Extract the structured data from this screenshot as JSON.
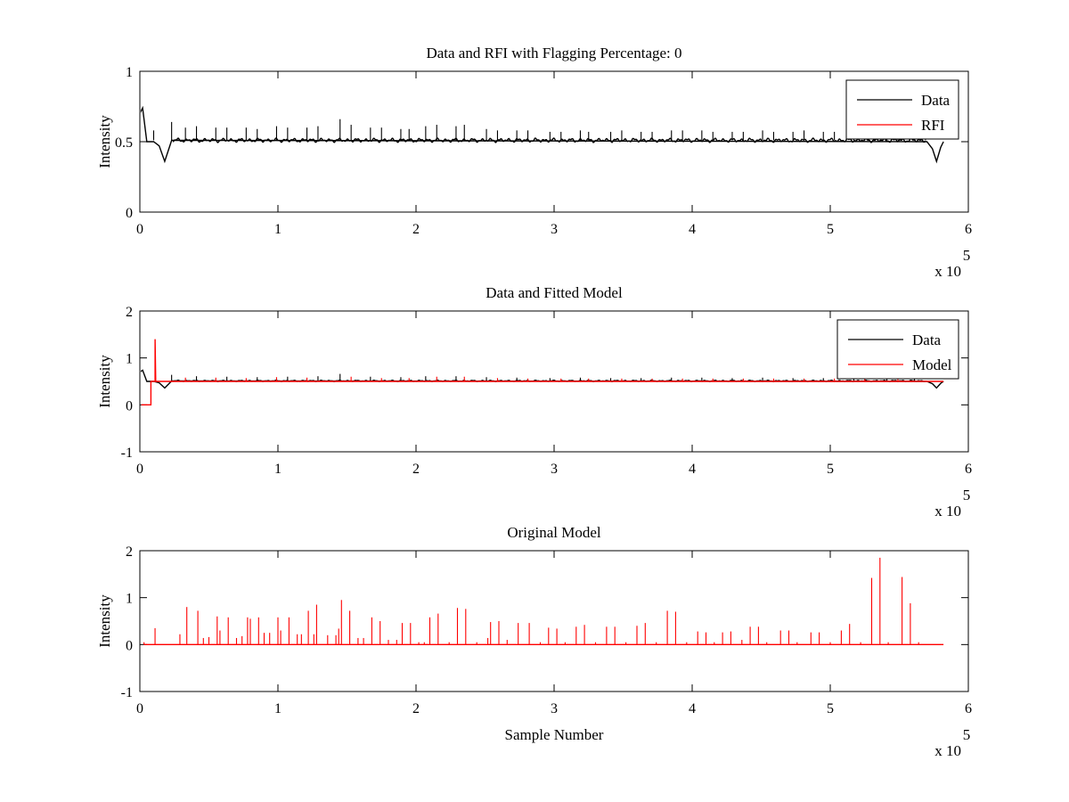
{
  "chart_data": [
    {
      "type": "line",
      "title": "Data and RFI with Flagging Percentage: 0",
      "xlabel": "",
      "ylabel": "Intensity",
      "xlim": [
        0,
        6
      ],
      "ylim": [
        0,
        1
      ],
      "xticks": [
        "0",
        "1",
        "2",
        "3",
        "4",
        "5",
        "6"
      ],
      "yticks": [
        "0",
        "0.5",
        "1"
      ],
      "x_multiplier": "x 10",
      "x_multiplier_exponent": "5",
      "legend": {
        "placement": "top-right",
        "entries": [
          {
            "name": "Data",
            "color": "#000000"
          },
          {
            "name": "RFI",
            "color": "#ff0000"
          }
        ]
      },
      "series": [
        {
          "name": "Data",
          "color": "#000000",
          "baseline": 0.51,
          "points": [
            [
              0.0,
              0.7
            ],
            [
              0.02,
              0.74
            ],
            [
              0.05,
              0.5
            ],
            [
              0.1,
              0.5
            ],
            [
              0.14,
              0.47
            ],
            [
              0.18,
              0.36
            ],
            [
              0.21,
              0.45
            ],
            [
              0.23,
              0.51
            ],
            [
              5.7,
              0.5
            ],
            [
              5.74,
              0.45
            ],
            [
              5.77,
              0.36
            ],
            [
              5.8,
              0.46
            ],
            [
              5.82,
              0.5
            ]
          ],
          "spikes": [
            [
              0.1,
              0.58
            ],
            [
              0.23,
              0.64
            ],
            [
              0.33,
              0.6
            ],
            [
              0.41,
              0.61
            ],
            [
              0.55,
              0.6
            ],
            [
              0.63,
              0.6
            ],
            [
              0.77,
              0.6
            ],
            [
              0.85,
              0.59
            ],
            [
              0.99,
              0.61
            ],
            [
              1.07,
              0.6
            ],
            [
              1.21,
              0.6
            ],
            [
              1.29,
              0.61
            ],
            [
              1.45,
              0.66
            ],
            [
              1.53,
              0.62
            ],
            [
              1.67,
              0.6
            ],
            [
              1.75,
              0.6
            ],
            [
              1.89,
              0.59
            ],
            [
              1.95,
              0.59
            ],
            [
              2.07,
              0.61
            ],
            [
              2.15,
              0.62
            ],
            [
              2.29,
              0.61
            ],
            [
              2.35,
              0.62
            ],
            [
              2.51,
              0.59
            ],
            [
              2.59,
              0.58
            ],
            [
              2.73,
              0.58
            ],
            [
              2.81,
              0.58
            ],
            [
              2.97,
              0.57
            ],
            [
              3.05,
              0.57
            ],
            [
              3.19,
              0.58
            ],
            [
              3.25,
              0.57
            ],
            [
              3.41,
              0.57
            ],
            [
              3.49,
              0.58
            ],
            [
              3.63,
              0.57
            ],
            [
              3.71,
              0.57
            ],
            [
              3.85,
              0.58
            ],
            [
              3.93,
              0.58
            ],
            [
              4.07,
              0.58
            ],
            [
              4.15,
              0.57
            ],
            [
              4.29,
              0.57
            ],
            [
              4.37,
              0.57
            ],
            [
              4.51,
              0.58
            ],
            [
              4.59,
              0.57
            ],
            [
              4.73,
              0.57
            ],
            [
              4.81,
              0.58
            ],
            [
              4.95,
              0.57
            ],
            [
              5.03,
              0.57
            ],
            [
              5.17,
              0.57
            ],
            [
              5.25,
              0.57
            ],
            [
              5.41,
              0.57
            ],
            [
              5.49,
              0.58
            ],
            [
              5.61,
              0.57
            ],
            [
              5.69,
              0.57
            ]
          ]
        },
        {
          "name": "RFI",
          "color": "#ff0000",
          "points": []
        }
      ]
    },
    {
      "type": "line",
      "title": "Data and Fitted Model",
      "xlabel": "",
      "ylabel": "Intensity",
      "xlim": [
        0,
        6
      ],
      "ylim": [
        -1,
        2
      ],
      "xticks": [
        "0",
        "1",
        "2",
        "3",
        "4",
        "5",
        "6"
      ],
      "yticks": [
        "-1",
        "0",
        "1",
        "2"
      ],
      "x_multiplier": "x 10",
      "x_multiplier_exponent": "5",
      "legend": {
        "placement": "top-right",
        "entries": [
          {
            "name": "Data",
            "color": "#000000"
          },
          {
            "name": "Model",
            "color": "#ff0000"
          }
        ]
      },
      "series": [
        {
          "name": "Data",
          "color": "#000000",
          "baseline": 0.51,
          "points": [
            [
              0.0,
              0.7
            ],
            [
              0.02,
              0.74
            ],
            [
              0.05,
              0.5
            ],
            [
              0.1,
              0.5
            ],
            [
              0.14,
              0.47
            ],
            [
              0.18,
              0.36
            ],
            [
              0.21,
              0.45
            ],
            [
              0.23,
              0.51
            ],
            [
              5.7,
              0.5
            ],
            [
              5.74,
              0.45
            ],
            [
              5.77,
              0.36
            ],
            [
              5.8,
              0.46
            ],
            [
              5.82,
              0.5
            ]
          ],
          "spikes": [
            [
              0.23,
              0.64
            ],
            [
              0.41,
              0.61
            ],
            [
              0.63,
              0.6
            ],
            [
              0.85,
              0.59
            ],
            [
              1.07,
              0.6
            ],
            [
              1.29,
              0.61
            ],
            [
              1.45,
              0.66
            ],
            [
              1.67,
              0.6
            ],
            [
              1.89,
              0.59
            ],
            [
              2.07,
              0.61
            ],
            [
              2.29,
              0.61
            ],
            [
              2.51,
              0.59
            ],
            [
              2.73,
              0.58
            ],
            [
              2.97,
              0.57
            ],
            [
              3.19,
              0.58
            ],
            [
              3.41,
              0.57
            ],
            [
              3.63,
              0.57
            ],
            [
              3.85,
              0.58
            ],
            [
              4.07,
              0.58
            ],
            [
              4.29,
              0.57
            ],
            [
              4.51,
              0.58
            ],
            [
              4.73,
              0.57
            ],
            [
              4.95,
              0.57
            ],
            [
              5.17,
              0.57
            ],
            [
              5.41,
              0.57
            ],
            [
              5.61,
              0.57
            ]
          ]
        },
        {
          "name": "Model",
          "color": "#ff0000",
          "baseline": 0.51,
          "points": [
            [
              0.01,
              0.0
            ],
            [
              0.08,
              0.0
            ],
            [
              0.08,
              0.5
            ],
            [
              0.11,
              0.5
            ],
            [
              0.11,
              1.4
            ],
            [
              0.115,
              0.5
            ],
            [
              5.82,
              0.5
            ]
          ],
          "spikes": [
            [
              0.33,
              0.58
            ],
            [
              0.55,
              0.58
            ],
            [
              0.77,
              0.57
            ],
            [
              0.99,
              0.59
            ],
            [
              1.21,
              0.58
            ],
            [
              1.53,
              0.6
            ],
            [
              1.75,
              0.57
            ],
            [
              1.95,
              0.57
            ],
            [
              2.15,
              0.6
            ],
            [
              2.35,
              0.6
            ],
            [
              2.59,
              0.57
            ],
            [
              2.81,
              0.56
            ],
            [
              3.05,
              0.56
            ],
            [
              3.25,
              0.56
            ],
            [
              3.49,
              0.56
            ],
            [
              3.71,
              0.56
            ],
            [
              3.93,
              0.56
            ],
            [
              4.15,
              0.56
            ],
            [
              4.37,
              0.56
            ],
            [
              4.59,
              0.56
            ],
            [
              4.81,
              0.56
            ],
            [
              5.03,
              0.56
            ],
            [
              5.25,
              0.56
            ],
            [
              5.49,
              0.56
            ]
          ]
        }
      ]
    },
    {
      "type": "line",
      "title": "Original Model",
      "xlabel": "Sample Number",
      "ylabel": "Intensity",
      "xlim": [
        0,
        6
      ],
      "ylim": [
        -1,
        2
      ],
      "xticks": [
        "0",
        "1",
        "2",
        "3",
        "4",
        "5",
        "6"
      ],
      "yticks": [
        "-1",
        "0",
        "1",
        "2"
      ],
      "x_multiplier": "x 10",
      "x_multiplier_exponent": "5",
      "legend": null,
      "series": [
        {
          "name": "",
          "color": "#ff0000",
          "baseline": 0.0,
          "points": [
            [
              0.03,
              0.0
            ],
            [
              5.82,
              0.0
            ]
          ],
          "spikes": [
            [
              0.03,
              0.05
            ],
            [
              0.11,
              0.35
            ],
            [
              0.29,
              0.22
            ],
            [
              0.34,
              0.8
            ],
            [
              0.42,
              0.72
            ],
            [
              0.46,
              0.14
            ],
            [
              0.5,
              0.16
            ],
            [
              0.56,
              0.6
            ],
            [
              0.58,
              0.3
            ],
            [
              0.64,
              0.58
            ],
            [
              0.7,
              0.14
            ],
            [
              0.74,
              0.18
            ],
            [
              0.78,
              0.58
            ],
            [
              0.8,
              0.55
            ],
            [
              0.86,
              0.58
            ],
            [
              0.9,
              0.25
            ],
            [
              0.94,
              0.25
            ],
            [
              1.0,
              0.58
            ],
            [
              1.02,
              0.3
            ],
            [
              1.08,
              0.58
            ],
            [
              1.14,
              0.22
            ],
            [
              1.17,
              0.22
            ],
            [
              1.22,
              0.72
            ],
            [
              1.26,
              0.22
            ],
            [
              1.28,
              0.85
            ],
            [
              1.36,
              0.2
            ],
            [
              1.42,
              0.2
            ],
            [
              1.44,
              0.34
            ],
            [
              1.46,
              0.95
            ],
            [
              1.52,
              0.72
            ],
            [
              1.58,
              0.14
            ],
            [
              1.62,
              0.14
            ],
            [
              1.68,
              0.58
            ],
            [
              1.74,
              0.5
            ],
            [
              1.8,
              0.1
            ],
            [
              1.86,
              0.1
            ],
            [
              1.9,
              0.46
            ],
            [
              1.96,
              0.46
            ],
            [
              2.02,
              0.05
            ],
            [
              2.06,
              0.05
            ],
            [
              2.1,
              0.58
            ],
            [
              2.16,
              0.66
            ],
            [
              2.24,
              0.05
            ],
            [
              2.3,
              0.78
            ],
            [
              2.36,
              0.76
            ],
            [
              2.44,
              0.05
            ],
            [
              2.52,
              0.14
            ],
            [
              2.54,
              0.48
            ],
            [
              2.6,
              0.5
            ],
            [
              2.66,
              0.1
            ],
            [
              2.74,
              0.46
            ],
            [
              2.82,
              0.46
            ],
            [
              2.9,
              0.05
            ],
            [
              2.96,
              0.36
            ],
            [
              3.02,
              0.34
            ],
            [
              3.08,
              0.05
            ],
            [
              3.16,
              0.38
            ],
            [
              3.22,
              0.42
            ],
            [
              3.3,
              0.05
            ],
            [
              3.38,
              0.38
            ],
            [
              3.44,
              0.38
            ],
            [
              3.52,
              0.05
            ],
            [
              3.6,
              0.4
            ],
            [
              3.66,
              0.46
            ],
            [
              3.74,
              0.05
            ],
            [
              3.82,
              0.72
            ],
            [
              3.88,
              0.7
            ],
            [
              3.96,
              0.05
            ],
            [
              4.04,
              0.28
            ],
            [
              4.1,
              0.26
            ],
            [
              4.16,
              0.05
            ],
            [
              4.22,
              0.26
            ],
            [
              4.28,
              0.28
            ],
            [
              4.36,
              0.1
            ],
            [
              4.42,
              0.38
            ],
            [
              4.48,
              0.38
            ],
            [
              4.54,
              0.05
            ],
            [
              4.64,
              0.3
            ],
            [
              4.7,
              0.3
            ],
            [
              4.76,
              0.05
            ],
            [
              4.86,
              0.26
            ],
            [
              4.92,
              0.26
            ],
            [
              5.0,
              0.05
            ],
            [
              5.08,
              0.3
            ],
            [
              5.14,
              0.44
            ],
            [
              5.22,
              0.05
            ],
            [
              5.3,
              1.42
            ],
            [
              5.36,
              1.85
            ],
            [
              5.42,
              0.05
            ],
            [
              5.52,
              1.44
            ],
            [
              5.58,
              0.88
            ],
            [
              5.64,
              0.05
            ]
          ]
        }
      ]
    }
  ]
}
